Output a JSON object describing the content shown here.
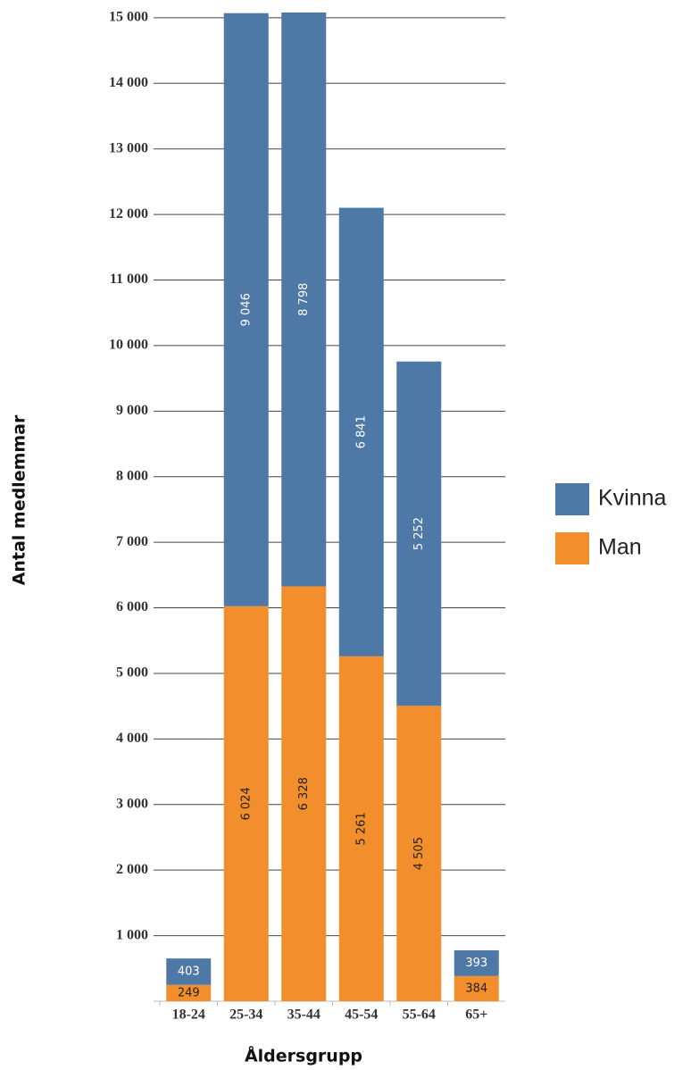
{
  "chart_data": {
    "type": "stacked-bar",
    "categories": [
      "18-24",
      "25-34",
      "35-44",
      "45-54",
      "55-64",
      "65+"
    ],
    "series": [
      {
        "name": "Kvinna",
        "color": "#4e79a7",
        "values": [
          403,
          9046,
          8798,
          6841,
          5252,
          393
        ],
        "value_labels": [
          "403",
          "9 046",
          "8 798",
          "6 841",
          "5 252",
          "393"
        ]
      },
      {
        "name": "Man",
        "color": "#f28e2b",
        "values": [
          249,
          6024,
          6328,
          5261,
          4505,
          384
        ],
        "value_labels": [
          "249",
          "6 024",
          "6 328",
          "5 261",
          "4 505",
          "384"
        ]
      }
    ],
    "ylim": [
      0,
      15080
    ],
    "yticks": [
      {
        "value": 1000,
        "label": "1 000"
      },
      {
        "value": 2000,
        "label": "2 000"
      },
      {
        "value": 3000,
        "label": "3 000"
      },
      {
        "value": 4000,
        "label": "4 000"
      },
      {
        "value": 5000,
        "label": "5 000"
      },
      {
        "value": 6000,
        "label": "6 000"
      },
      {
        "value": 7000,
        "label": "7 000"
      },
      {
        "value": 8000,
        "label": "8 000"
      },
      {
        "value": 9000,
        "label": "9 000"
      },
      {
        "value": 10000,
        "label": "10 000"
      },
      {
        "value": 11000,
        "label": "11 000"
      },
      {
        "value": 12000,
        "label": "12 000"
      },
      {
        "value": 13000,
        "label": "13 000"
      },
      {
        "value": 14000,
        "label": "14 000"
      },
      {
        "value": 15000,
        "label": "15 000"
      }
    ],
    "grid": true,
    "xlabel": "Åldersgrupp",
    "ylabel": "Antal medlemmar",
    "legend": "right"
  }
}
